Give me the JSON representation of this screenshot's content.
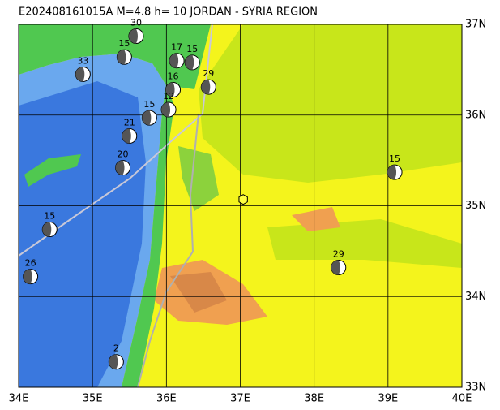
{
  "chart_data": {
    "type": "map",
    "title": "E202408161015A M=4.8 h= 10 JORDAN - SYRIA REGION",
    "xlim": [
      34,
      40
    ],
    "ylim": [
      33,
      37
    ],
    "xticks": [
      {
        "value": 34,
        "label": "34E"
      },
      {
        "value": 35,
        "label": "35E"
      },
      {
        "value": 36,
        "label": "36E"
      },
      {
        "value": 37,
        "label": "37E"
      },
      {
        "value": 38,
        "label": "38E"
      },
      {
        "value": 39,
        "label": "39E"
      },
      {
        "value": 40,
        "label": "40E"
      }
    ],
    "yticks": [
      {
        "value": 33,
        "label": "33N"
      },
      {
        "value": 34,
        "label": "34N"
      },
      {
        "value": 35,
        "label": "35N"
      },
      {
        "value": 36,
        "label": "36N"
      },
      {
        "value": 37,
        "label": "37N"
      }
    ],
    "grid": true,
    "epicenter": {
      "lon": 37.04,
      "lat": 35.07
    },
    "events": [
      {
        "lon": 35.59,
        "lat": 36.87,
        "depth": 30
      },
      {
        "lon": 35.43,
        "lat": 36.64,
        "depth": 15
      },
      {
        "lon": 34.87,
        "lat": 36.45,
        "depth": 33
      },
      {
        "lon": 36.14,
        "lat": 36.6,
        "depth": 17
      },
      {
        "lon": 36.35,
        "lat": 36.58,
        "depth": 15
      },
      {
        "lon": 36.57,
        "lat": 36.31,
        "depth": 29
      },
      {
        "lon": 36.09,
        "lat": 36.28,
        "depth": 16
      },
      {
        "lon": 36.03,
        "lat": 36.06,
        "depth": 12
      },
      {
        "lon": 35.77,
        "lat": 35.97,
        "depth": 15
      },
      {
        "lon": 35.5,
        "lat": 35.77,
        "depth": 21
      },
      {
        "lon": 35.41,
        "lat": 35.42,
        "depth": 20
      },
      {
        "lon": 39.09,
        "lat": 35.37,
        "depth": 15
      },
      {
        "lon": 34.42,
        "lat": 34.74,
        "depth": 15
      },
      {
        "lon": 34.16,
        "lat": 34.22,
        "depth": 26
      },
      {
        "lon": 38.33,
        "lat": 34.32,
        "depth": 29
      },
      {
        "lon": 35.32,
        "lat": 33.28,
        "depth": 2
      }
    ]
  }
}
